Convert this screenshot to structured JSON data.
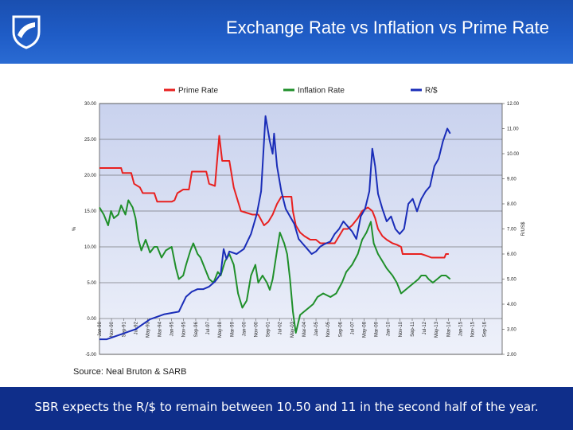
{
  "header": {
    "title": "Exchange Rate vs Inflation vs Prime Rate",
    "logo_icon": "shield-logo-icon",
    "bg_color": "#1f5cc6"
  },
  "footer": {
    "text": "SBR expects the  R/$ to remain between 10.50 and 11 in the second half of the year.",
    "bg_color": "#0f2e8a"
  },
  "source": "Source: Neal Bruton & SARB",
  "chart_data": {
    "type": "line",
    "title": "",
    "legend": [
      {
        "name": "Prime Rate",
        "color": "#e8201f"
      },
      {
        "name": "Inflation Rate",
        "color": "#1f8f2a"
      },
      {
        "name": "R/$",
        "color": "#1a2db8"
      }
    ],
    "ylabel_left": "%",
    "ylabel_right": "R/US$",
    "y_left": {
      "min": -5,
      "max": 30,
      "ticks": [
        "30.00",
        "25.00",
        "20.00",
        "15.00",
        "10.00",
        "5.00",
        "0.00",
        "-5.00"
      ]
    },
    "y_right": {
      "min": 2,
      "max": 12,
      "ticks": [
        "12.00",
        "11.00",
        "10.00",
        "9.00",
        "8.00",
        "7.00",
        "6.00",
        "5.00",
        "4.00",
        "3.00",
        "2.00"
      ]
    },
    "x_range": [
      1990.0,
      2017.9
    ],
    "x_labels": [
      "Jan-90",
      "Nov-90",
      "Sep-91",
      "Jul-92",
      "May-93",
      "Mar-94",
      "Jan-95",
      "Nov-95",
      "Sep-96",
      "Jul-97",
      "May-98",
      "Mar-99",
      "Jan-00",
      "Nov-00",
      "Sep-01",
      "Jul-02",
      "May-03",
      "Mar-04",
      "Jan-05",
      "Nov-05",
      "Sep-06",
      "Jul-07",
      "May-08",
      "Mar-09",
      "Jan-10",
      "Nov-10",
      "Sep-11",
      "Jul-12",
      "May-13",
      "Mar-14",
      "Jan-15",
      "Nov-15",
      "Sep-16"
    ],
    "x_label_years": [
      1990.0,
      1990.83,
      1991.67,
      1992.5,
      1993.33,
      1994.17,
      1995.0,
      1995.83,
      1996.67,
      1997.5,
      1998.33,
      1999.17,
      2000.0,
      2000.83,
      2001.67,
      2002.5,
      2003.33,
      2004.17,
      2005.0,
      2005.83,
      2006.67,
      2007.5,
      2008.33,
      2009.17,
      2010.0,
      2010.83,
      2011.67,
      2012.5,
      2013.33,
      2014.17,
      2015.0,
      2015.83,
      2016.67
    ],
    "series": [
      {
        "name": "Prime Rate",
        "axis": "left",
        "x": [
          1990.0,
          1991.5,
          1991.6,
          1992.2,
          1992.4,
          1992.8,
          1993.0,
          1993.8,
          1994.0,
          1995.0,
          1995.2,
          1995.4,
          1995.8,
          1996.2,
          1996.4,
          1997.4,
          1997.6,
          1998.0,
          1998.3,
          1998.5,
          1999.0,
          1999.3,
          1999.8,
          2000.6,
          2001.0,
          2001.4,
          2001.7,
          2002.0,
          2002.3,
          2002.6,
          2003.3,
          2003.4,
          2003.6,
          2003.9,
          2004.2,
          2004.6,
          2005.0,
          2005.3,
          2006.3,
          2006.6,
          2006.9,
          2007.2,
          2007.5,
          2007.9,
          2008.2,
          2008.6,
          2008.9,
          2009.1,
          2009.3,
          2009.6,
          2009.9,
          2010.3,
          2010.6,
          2010.9,
          2011.0,
          2012.3,
          2012.6,
          2013.0,
          2013.6,
          2013.9,
          2014.0,
          2014.2
        ],
        "y": [
          21,
          21,
          20.3,
          20.3,
          18.8,
          18.3,
          17.5,
          17.5,
          16.3,
          16.3,
          16.5,
          17.5,
          18,
          18,
          20.5,
          20.5,
          18.8,
          18.5,
          25.5,
          22,
          22,
          18.3,
          15,
          14.5,
          14.5,
          13,
          13.5,
          14.5,
          16,
          17,
          17,
          15,
          13,
          12,
          11.5,
          11,
          11,
          10.5,
          10.5,
          11.5,
          12.5,
          12.5,
          13,
          14,
          15,
          15.5,
          15,
          14,
          12.5,
          11.5,
          11,
          10.5,
          10.3,
          10,
          9,
          9,
          8.8,
          8.5,
          8.5,
          8.5,
          9,
          9
        ]
      },
      {
        "name": "Inflation Rate",
        "axis": "left",
        "x": [
          1990.0,
          1990.3,
          1990.6,
          1990.8,
          1991.0,
          1991.3,
          1991.5,
          1991.8,
          1992.0,
          1992.3,
          1992.5,
          1992.7,
          1992.9,
          1993.2,
          1993.5,
          1993.8,
          1994.0,
          1994.3,
          1994.6,
          1995.0,
          1995.3,
          1995.5,
          1995.8,
          1996.0,
          1996.3,
          1996.5,
          1996.8,
          1997.0,
          1997.3,
          1997.6,
          1997.9,
          1998.2,
          1998.4,
          1998.7,
          1999.0,
          1999.3,
          1999.6,
          1999.9,
          2000.2,
          2000.5,
          2000.8,
          2001.0,
          2001.3,
          2001.6,
          2001.8,
          2002.0,
          2002.3,
          2002.5,
          2002.8,
          2003.0,
          2003.2,
          2003.4,
          2003.6,
          2003.9,
          2004.2,
          2004.5,
          2004.8,
          2005.1,
          2005.5,
          2006.0,
          2006.4,
          2006.8,
          2007.1,
          2007.5,
          2007.9,
          2008.2,
          2008.5,
          2008.8,
          2009.0,
          2009.3,
          2009.6,
          2009.9,
          2010.3,
          2010.6,
          2010.9,
          2011.2,
          2011.5,
          2011.8,
          2012.1,
          2012.3,
          2012.6,
          2012.8,
          2013.1,
          2013.4,
          2013.7,
          2014.0,
          2014.3
        ],
        "y": [
          15.5,
          14.5,
          13,
          15,
          14,
          14.5,
          15.8,
          14.5,
          16.5,
          15.5,
          14,
          11,
          9.5,
          11,
          9.2,
          10,
          10,
          8.5,
          9.5,
          10,
          7,
          5.5,
          6,
          7.5,
          9.5,
          10.5,
          9,
          8.5,
          7,
          5.5,
          5,
          6.5,
          6,
          8,
          9,
          7.5,
          3.5,
          1.5,
          2.5,
          6,
          7.5,
          5,
          6,
          5,
          4,
          5.5,
          9.5,
          12,
          10.5,
          9,
          5.5,
          1,
          -2,
          0.5,
          1,
          1.5,
          2,
          3,
          3.5,
          3,
          3.5,
          5,
          6.5,
          7.5,
          9,
          11,
          12,
          13.5,
          10.5,
          9,
          8,
          7,
          6,
          5,
          3.5,
          4,
          4.5,
          5,
          5.5,
          6,
          6,
          5.5,
          5,
          5.5,
          6,
          6,
          5.5
        ]
      },
      {
        "name": "R/$",
        "axis": "right",
        "x": [
          1990.0,
          1990.5,
          1991.0,
          1991.5,
          1992.0,
          1992.5,
          1993.0,
          1993.5,
          1994.0,
          1994.5,
          1995.0,
          1995.5,
          1996.0,
          1996.4,
          1996.8,
          1997.2,
          1997.6,
          1998.0,
          1998.4,
          1998.6,
          1998.8,
          1999.0,
          1999.5,
          2000.0,
          2000.5,
          2000.9,
          2001.2,
          2001.5,
          2001.8,
          2002.0,
          2002.1,
          2002.3,
          2002.6,
          2002.9,
          2003.2,
          2003.5,
          2003.8,
          2004.1,
          2004.4,
          2004.7,
          2005.0,
          2005.3,
          2005.6,
          2006.0,
          2006.3,
          2006.6,
          2006.9,
          2007.2,
          2007.5,
          2007.8,
          2008.1,
          2008.4,
          2008.7,
          2008.9,
          2009.1,
          2009.3,
          2009.6,
          2009.9,
          2010.2,
          2010.5,
          2010.8,
          2011.1,
          2011.4,
          2011.7,
          2012.0,
          2012.3,
          2012.6,
          2012.9,
          2013.2,
          2013.5,
          2013.8,
          2014.1,
          2014.3
        ],
        "y": [
          2.6,
          2.6,
          2.7,
          2.8,
          2.9,
          3.0,
          3.2,
          3.4,
          3.5,
          3.6,
          3.65,
          3.7,
          4.3,
          4.5,
          4.6,
          4.6,
          4.7,
          4.9,
          5.2,
          6.2,
          5.8,
          6.1,
          6.0,
          6.2,
          6.8,
          7.6,
          8.5,
          11.5,
          10.5,
          10.0,
          10.8,
          9.5,
          8.5,
          7.8,
          7.5,
          7.2,
          6.6,
          6.4,
          6.2,
          6.0,
          6.1,
          6.3,
          6.4,
          6.5,
          6.8,
          7.0,
          7.3,
          7.1,
          6.9,
          6.6,
          7.5,
          7.8,
          8.5,
          10.2,
          9.5,
          8.4,
          7.8,
          7.3,
          7.5,
          7.0,
          6.8,
          7.0,
          8.0,
          8.2,
          7.7,
          8.2,
          8.5,
          8.7,
          9.5,
          9.8,
          10.5,
          11.0,
          10.8
        ]
      }
    ]
  }
}
